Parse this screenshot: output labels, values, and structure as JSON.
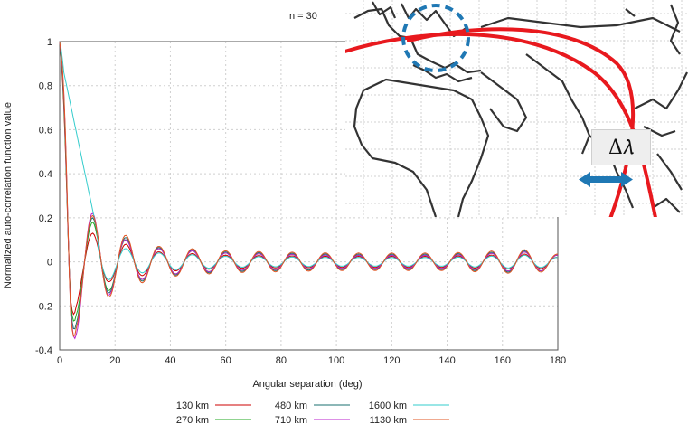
{
  "annotation": "n = 30",
  "inset": {
    "delta_label": "Δ𝜆",
    "great_circle_color": "#e8191e",
    "circle_marker_color": "#1f78b4",
    "arrow_color": "#1f78b4"
  },
  "chart_data": {
    "type": "line",
    "title": "",
    "xlabel": "Angular separation (deg)",
    "ylabel": "Normalized auto-correlation function value",
    "xlim": [
      0,
      180
    ],
    "ylim": [
      -0.4,
      1
    ],
    "xticks": [
      "0",
      "20",
      "40",
      "60",
      "80",
      "100",
      "120",
      "140",
      "160",
      "180"
    ],
    "yticks": [
      "-0.4",
      "-0.2",
      "0",
      "0.2",
      "0.4",
      "0.6",
      "0.8",
      "1"
    ],
    "grid": true,
    "legend_position": "bottom",
    "period_deg": 12,
    "series": [
      {
        "name": "130 km",
        "color": "#cc0000",
        "x": [
          0,
          2,
          4,
          6,
          8,
          12,
          18,
          24,
          36,
          60,
          100,
          140,
          168,
          175,
          180
        ],
        "amplitude": [
          1.0,
          0.72,
          0.35,
          0.2,
          0.14,
          0.13,
          0.09,
          0.08,
          0.045,
          0.03,
          0.025,
          0.025,
          0.035,
          0.03,
          0.02
        ]
      },
      {
        "name": "270 km",
        "color": "#22aa22",
        "x": [
          0,
          2,
          4,
          6,
          8,
          12,
          18,
          24,
          36,
          60,
          100,
          140,
          168,
          175,
          180
        ],
        "amplitude": [
          1.0,
          0.75,
          0.38,
          0.24,
          0.19,
          0.18,
          0.13,
          0.1,
          0.06,
          0.04,
          0.03,
          0.03,
          0.045,
          0.04,
          0.03
        ]
      },
      {
        "name": "480 km",
        "color": "#1a6f6f",
        "x": [
          0,
          2,
          4,
          6,
          8,
          12,
          18,
          24,
          36,
          60,
          100,
          140,
          168,
          175,
          180
        ],
        "amplitude": [
          1.0,
          0.78,
          0.42,
          0.28,
          0.22,
          0.2,
          0.14,
          0.11,
          0.065,
          0.045,
          0.035,
          0.035,
          0.05,
          0.04,
          0.03
        ]
      },
      {
        "name": "710 km",
        "color": "#bb22cc",
        "x": [
          0,
          2,
          4,
          6,
          8,
          12,
          18,
          24,
          36,
          60,
          100,
          140,
          168,
          175,
          180
        ],
        "amplitude": [
          1.0,
          0.8,
          0.45,
          0.33,
          0.26,
          0.22,
          0.15,
          0.1,
          0.06,
          0.04,
          0.03,
          0.03,
          0.045,
          0.04,
          0.03
        ]
      },
      {
        "name": "1600 km",
        "color": "#33cccc",
        "x": [
          0,
          2,
          4,
          6,
          8,
          12,
          18,
          24,
          36,
          60,
          100,
          140,
          168,
          175,
          180
        ],
        "amplitude": [
          1.0,
          0.9,
          0.6,
          0.35,
          0.22,
          0.12,
          0.08,
          0.06,
          0.04,
          0.025,
          0.02,
          0.02,
          0.03,
          0.025,
          0.02
        ]
      },
      {
        "name": "1130 km",
        "color": "#e05522",
        "x": [
          0,
          2,
          4,
          6,
          8,
          12,
          18,
          24,
          36,
          60,
          100,
          140,
          168,
          175,
          180
        ],
        "amplitude": [
          1.0,
          0.82,
          0.48,
          0.3,
          0.24,
          0.21,
          0.16,
          0.12,
          0.07,
          0.05,
          0.04,
          0.04,
          0.055,
          0.045,
          0.035
        ]
      }
    ]
  }
}
